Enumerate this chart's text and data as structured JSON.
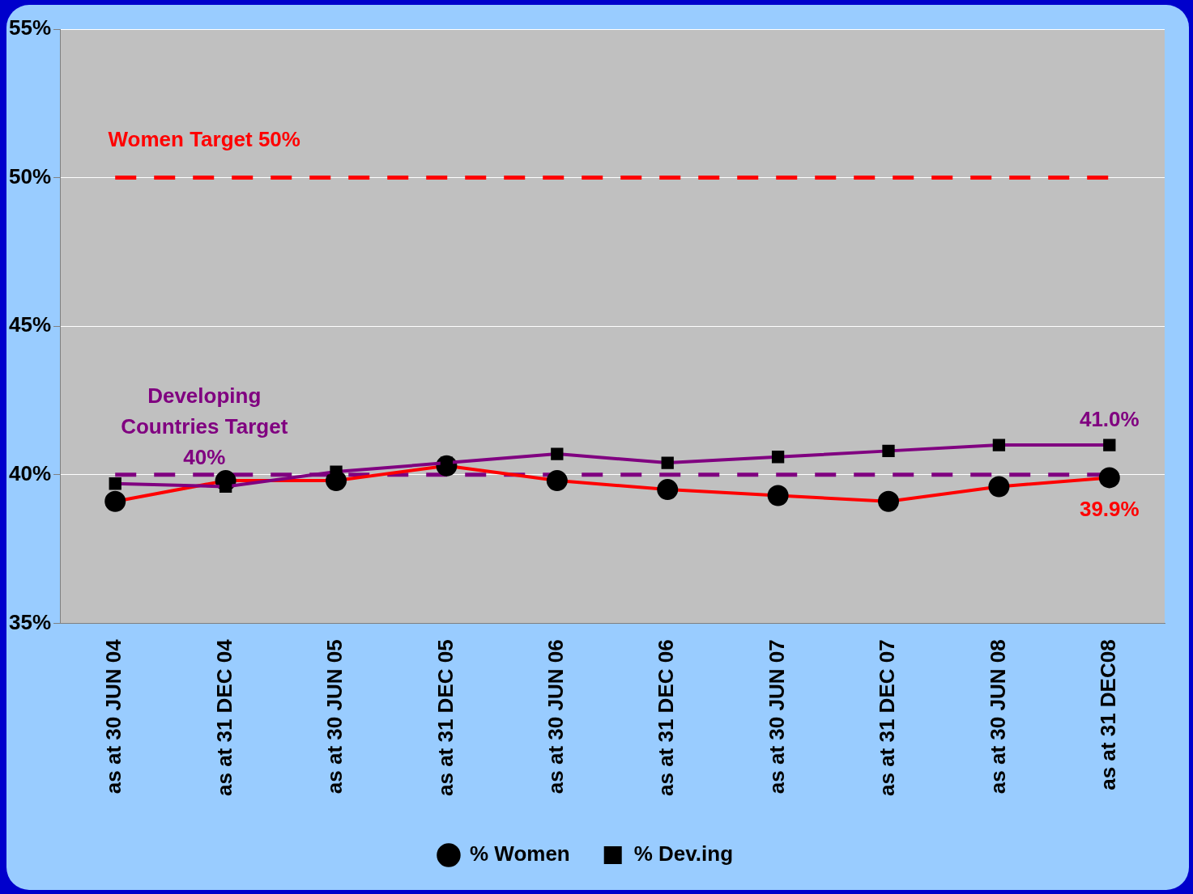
{
  "chart_data": {
    "type": "line",
    "categories": [
      "as at 30 JUN 04",
      "as at 31 DEC 04",
      "as at 30 JUN 05",
      "as at 31 DEC 05",
      "as at 30 JUN 06",
      "as at 31 DEC 06",
      "as at 30 JUN 07",
      "as at 31 DEC 07",
      "as at 30 JUN 08",
      "as at 31 DEC08"
    ],
    "series": [
      {
        "name": "% Women",
        "color": "#ff0000",
        "marker": "circle",
        "values": [
          39.1,
          39.8,
          39.8,
          40.3,
          39.8,
          39.5,
          39.3,
          39.1,
          39.6,
          39.9
        ],
        "value_labels": [
          null,
          null,
          null,
          null,
          null,
          null,
          null,
          null,
          null,
          "39.9%"
        ]
      },
      {
        "name": "% Dev.ing",
        "color": "#800080",
        "marker": "square",
        "values": [
          39.7,
          39.6,
          40.1,
          40.4,
          40.7,
          40.4,
          40.6,
          40.8,
          41.0,
          41.0
        ],
        "value_labels": [
          null,
          null,
          null,
          null,
          null,
          null,
          null,
          null,
          null,
          "41.0%"
        ]
      }
    ],
    "ylim": [
      35,
      55
    ],
    "yticks": [
      {
        "value": 35,
        "label": "35%"
      },
      {
        "value": 40,
        "label": "40%"
      },
      {
        "value": 45,
        "label": "45%"
      },
      {
        "value": 50,
        "label": "50%"
      },
      {
        "value": 55,
        "label": "55%"
      }
    ],
    "grid": "y",
    "legend": "bottom",
    "ref_lines": [
      {
        "axis": "y",
        "value": 50,
        "label": "Women Target 50%",
        "color": "#ff0000",
        "line_style": "dashed"
      },
      {
        "axis": "y",
        "value": 40,
        "label": "Developing Countries Target 40%",
        "color": "#800080",
        "line_style": "dashed"
      }
    ]
  }
}
